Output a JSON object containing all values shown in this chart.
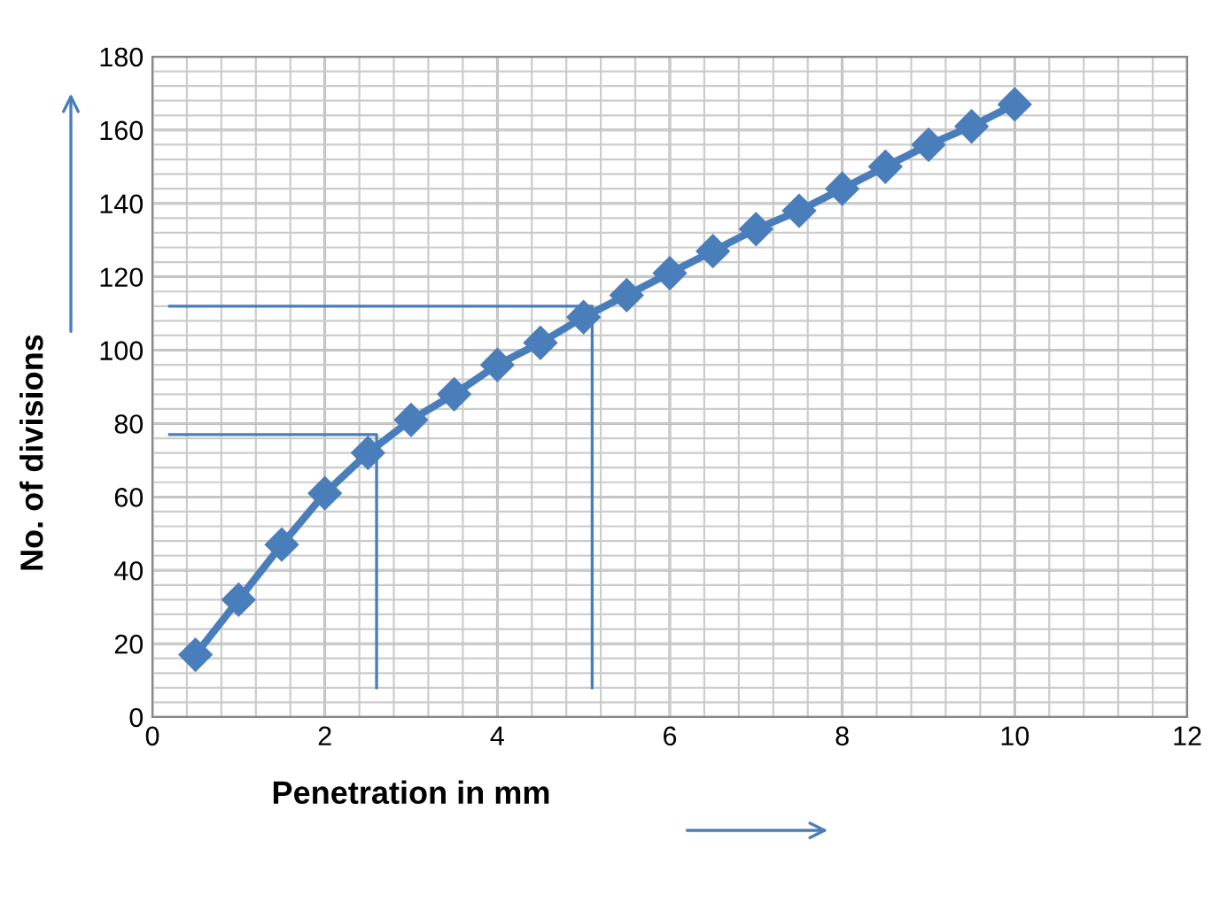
{
  "chart_data": {
    "type": "line",
    "xlabel": "Penetration in mm",
    "ylabel": "No. of divisions",
    "xlim": [
      0,
      12
    ],
    "xticks": [
      0,
      2,
      4,
      6,
      8,
      10,
      12
    ],
    "ylim": [
      0,
      180
    ],
    "yticks": [
      0,
      20,
      40,
      60,
      80,
      100,
      120,
      140,
      160,
      180
    ],
    "grid": true,
    "marker": "diamond",
    "line_style": "solid",
    "series": [
      {
        "color": "#4a7ebb",
        "x": [
          0.5,
          1,
          1.5,
          2,
          2.5,
          3,
          3.5,
          4,
          4.5,
          5,
          5.5,
          6,
          6.5,
          7,
          7.5,
          8,
          8.5,
          9,
          9.5,
          10
        ],
        "values": [
          17,
          32,
          47,
          61,
          72,
          81,
          88,
          96,
          102,
          109,
          115,
          121,
          127,
          133,
          138,
          144,
          150,
          156,
          161,
          167
        ]
      },
      {
        "type": "line",
        "marker": "none",
        "color": "#4a7ebb",
        "x": [
          0.2,
          2.6,
          2.6
        ],
        "values": [
          77,
          77,
          8
        ]
      },
      {
        "type": "line",
        "marker": "none",
        "color": "#4a7ebb",
        "x": [
          0.2,
          5.1,
          5.1
        ],
        "values": [
          112,
          112,
          8
        ]
      }
    ]
  }
}
